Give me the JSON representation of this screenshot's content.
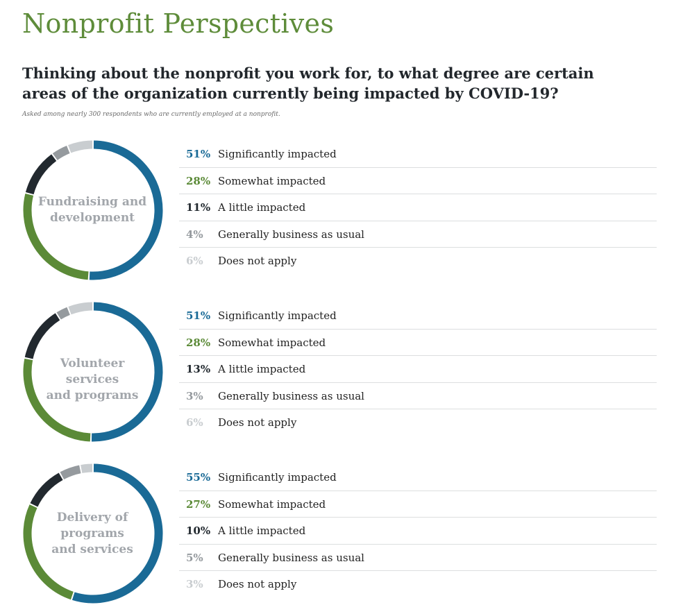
{
  "header": {
    "brand": "Nonprofit Perspectives",
    "question": "Thinking about the nonprofit you work for, to what degree are certain areas of the organization currently being impacted by COVID-19?",
    "note": "Asked among nearly 300 respondents who are currently employed at a nonprofit."
  },
  "colors": {
    "significant": "#1a6a96",
    "somewhat": "#5b8a37",
    "little": "#22292f",
    "business_as_usual": "#959a9e",
    "not_apply": "#c9cdd0"
  },
  "chart_data": [
    {
      "type": "pie",
      "variant": "donut",
      "center_label": [
        "Fundraising and",
        "development"
      ],
      "categories": [
        "Significantly impacted",
        "Somewhat impacted",
        "A little impacted",
        "Generally business as usual",
        "Does not apply"
      ],
      "values": [
        51,
        28,
        11,
        4,
        6
      ],
      "value_labels": [
        "51%",
        "28%",
        "11%",
        "4%",
        "6%"
      ]
    },
    {
      "type": "pie",
      "variant": "donut",
      "center_label": [
        "Volunteer services",
        "and programs"
      ],
      "categories": [
        "Significantly impacted",
        "Somewhat impacted",
        "A little impacted",
        "Generally business as usual",
        "Does not apply"
      ],
      "values": [
        51,
        28,
        13,
        3,
        6
      ],
      "value_labels": [
        "51%",
        "28%",
        "13%",
        "3%",
        "6%"
      ]
    },
    {
      "type": "pie",
      "variant": "donut",
      "center_label": [
        "Delivery of",
        "programs",
        "and services"
      ],
      "categories": [
        "Significantly impacted",
        "Somewhat impacted",
        "A little impacted",
        "Generally business as usual",
        "Does not apply"
      ],
      "values": [
        55,
        27,
        10,
        5,
        3
      ],
      "value_labels": [
        "55%",
        "27%",
        "10%",
        "5%",
        "3%"
      ]
    }
  ]
}
